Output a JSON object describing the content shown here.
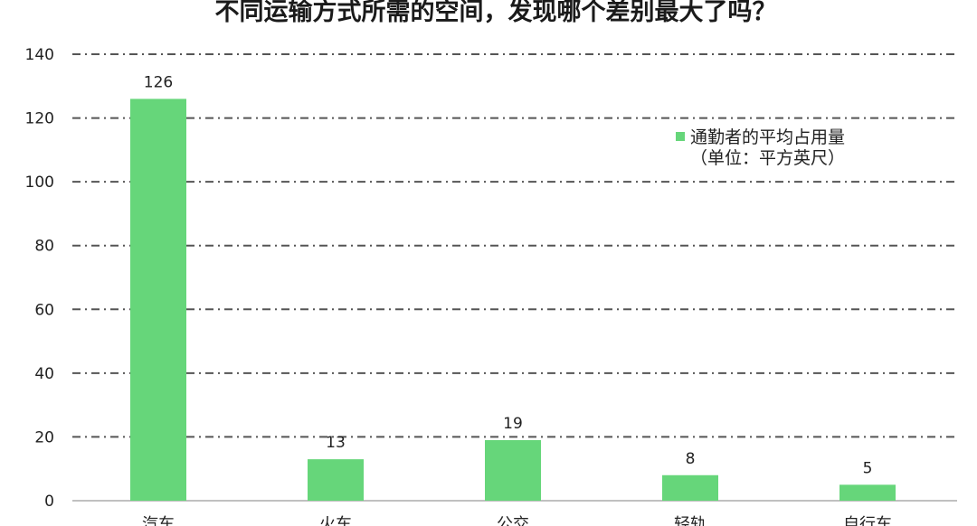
{
  "chart_data": {
    "type": "bar",
    "title": "不同运输方式所需的空间，发现哪个差别最大了吗？",
    "categories": [
      "汽车",
      "火车",
      "公交",
      "轻轨",
      "自行车"
    ],
    "series": [
      {
        "name": "通勤者的平均占用量（单位：平方英尺）",
        "values": [
          126,
          13,
          19,
          8,
          5
        ]
      }
    ],
    "legend_lines": [
      "通勤者的平均占用量",
      "（单位：平方英尺）"
    ],
    "ylim": [
      0,
      140
    ],
    "yticks": [
      0,
      20,
      40,
      60,
      80,
      100,
      120,
      140
    ],
    "grid": true,
    "grid_style": "dash-dot",
    "legend_position": "top-right",
    "xlabel": "",
    "ylabel": "",
    "bar_color": "#66d67a",
    "grid_color": "#555555"
  }
}
